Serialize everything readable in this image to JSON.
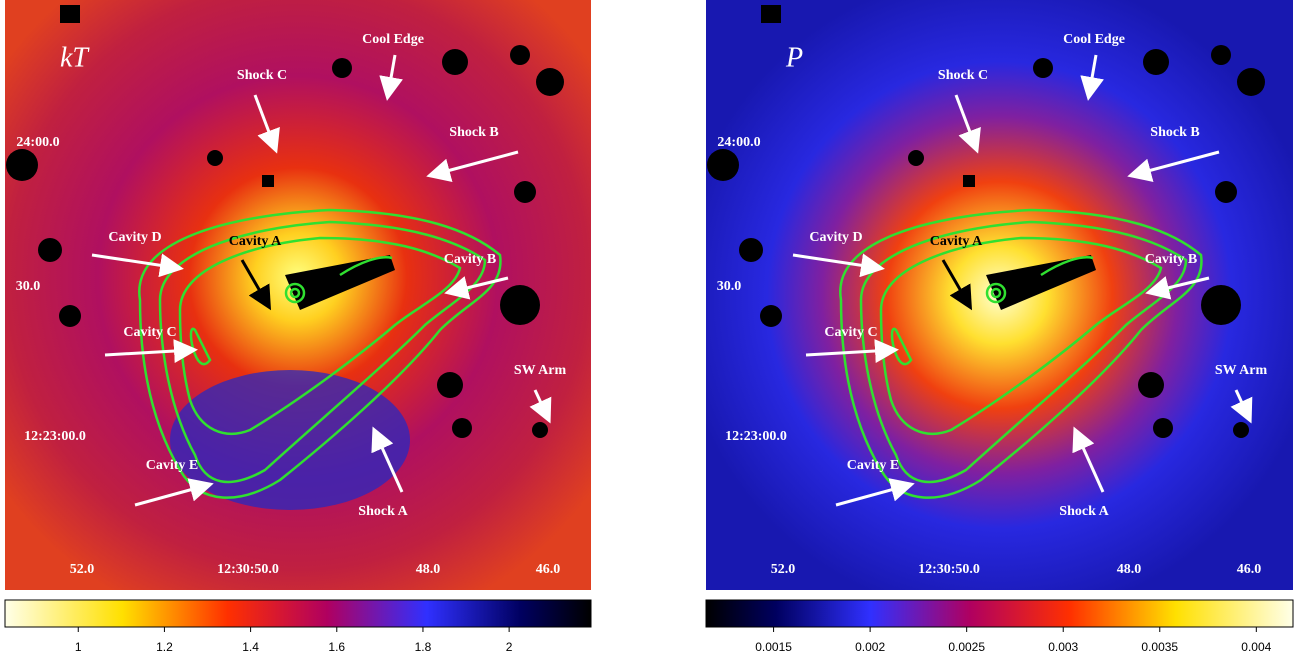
{
  "panels": [
    {
      "map_label": "kT",
      "annotations": [
        "Cool Edge",
        "Shock C",
        "Shock B",
        "Cavity D",
        "Cavity A",
        "Cavity B",
        "Cavity C",
        "SW Arm",
        "Cavity E",
        "Shock A"
      ],
      "dec_labels": [
        "24:00.0",
        "30.0",
        "12:23:00.0"
      ],
      "ra_labels": [
        "52.0",
        "12:30:50.0",
        "48.0",
        "46.0"
      ],
      "colorbar": {
        "lim": [
          0.83,
          2.19
        ],
        "ticks": [
          1,
          1.2,
          1.4,
          1.6,
          1.8,
          2
        ]
      }
    },
    {
      "map_label": "P",
      "annotations": [
        "Cool Edge",
        "Shock C",
        "Shock B",
        "Cavity D",
        "Cavity A",
        "Cavity B",
        "Cavity C",
        "SW Arm",
        "Cavity E",
        "Shock A"
      ],
      "dec_labels": [
        "24:00.0",
        "30.0",
        "12:23:00.0"
      ],
      "ra_labels": [
        "52.0",
        "12:30:50.0",
        "48.0",
        "46.0"
      ],
      "colorbar": {
        "lim": [
          0.00115,
          0.00419
        ],
        "ticks": [
          0.0015,
          0.002,
          0.0025,
          0.003,
          0.0035,
          0.004
        ]
      }
    }
  ]
}
